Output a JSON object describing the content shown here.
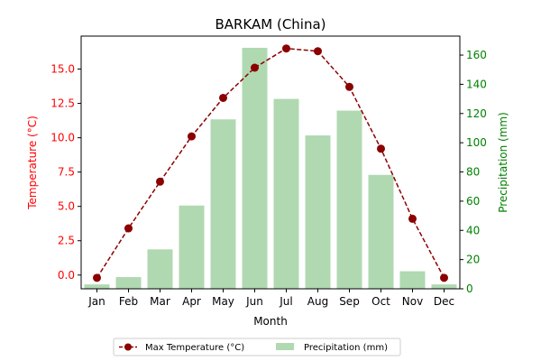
{
  "chart_data": {
    "type": "bar",
    "title": "BARKAM (China)",
    "xlabel": "Month",
    "ylabel_left": "Temperature (°C)",
    "ylabel_right": "Precipitation (mm)",
    "categories": [
      "Jan",
      "Feb",
      "Mar",
      "Apr",
      "May",
      "Jun",
      "Jul",
      "Aug",
      "Sep",
      "Oct",
      "Nov",
      "Dec"
    ],
    "series": [
      {
        "name": "Max Temperature (°C)",
        "type": "line",
        "axis": "left",
        "color": "#8b0000",
        "values": [
          -0.2,
          3.4,
          6.8,
          10.1,
          12.9,
          15.1,
          16.5,
          16.3,
          13.7,
          9.2,
          4.1,
          -0.2
        ]
      },
      {
        "name": "Precipitation (mm)",
        "type": "bar",
        "axis": "right",
        "color": "#b0d9b1",
        "values": [
          3,
          8,
          27,
          57,
          116,
          165,
          130,
          105,
          122,
          78,
          12,
          3
        ]
      }
    ],
    "ylim_left": [
      -1.0,
      17.4
    ],
    "yticks_left": [
      "0.0",
      "2.5",
      "5.0",
      "7.5",
      "10.0",
      "12.5",
      "15.0"
    ],
    "ylim_right": [
      0,
      173
    ],
    "yticks_right": [
      "0",
      "20",
      "40",
      "60",
      "80",
      "100",
      "120",
      "140",
      "160"
    ],
    "left_axis_color": "#ff0000",
    "right_axis_color": "#008000",
    "grid": false,
    "legend_placement": "bottom-center"
  }
}
